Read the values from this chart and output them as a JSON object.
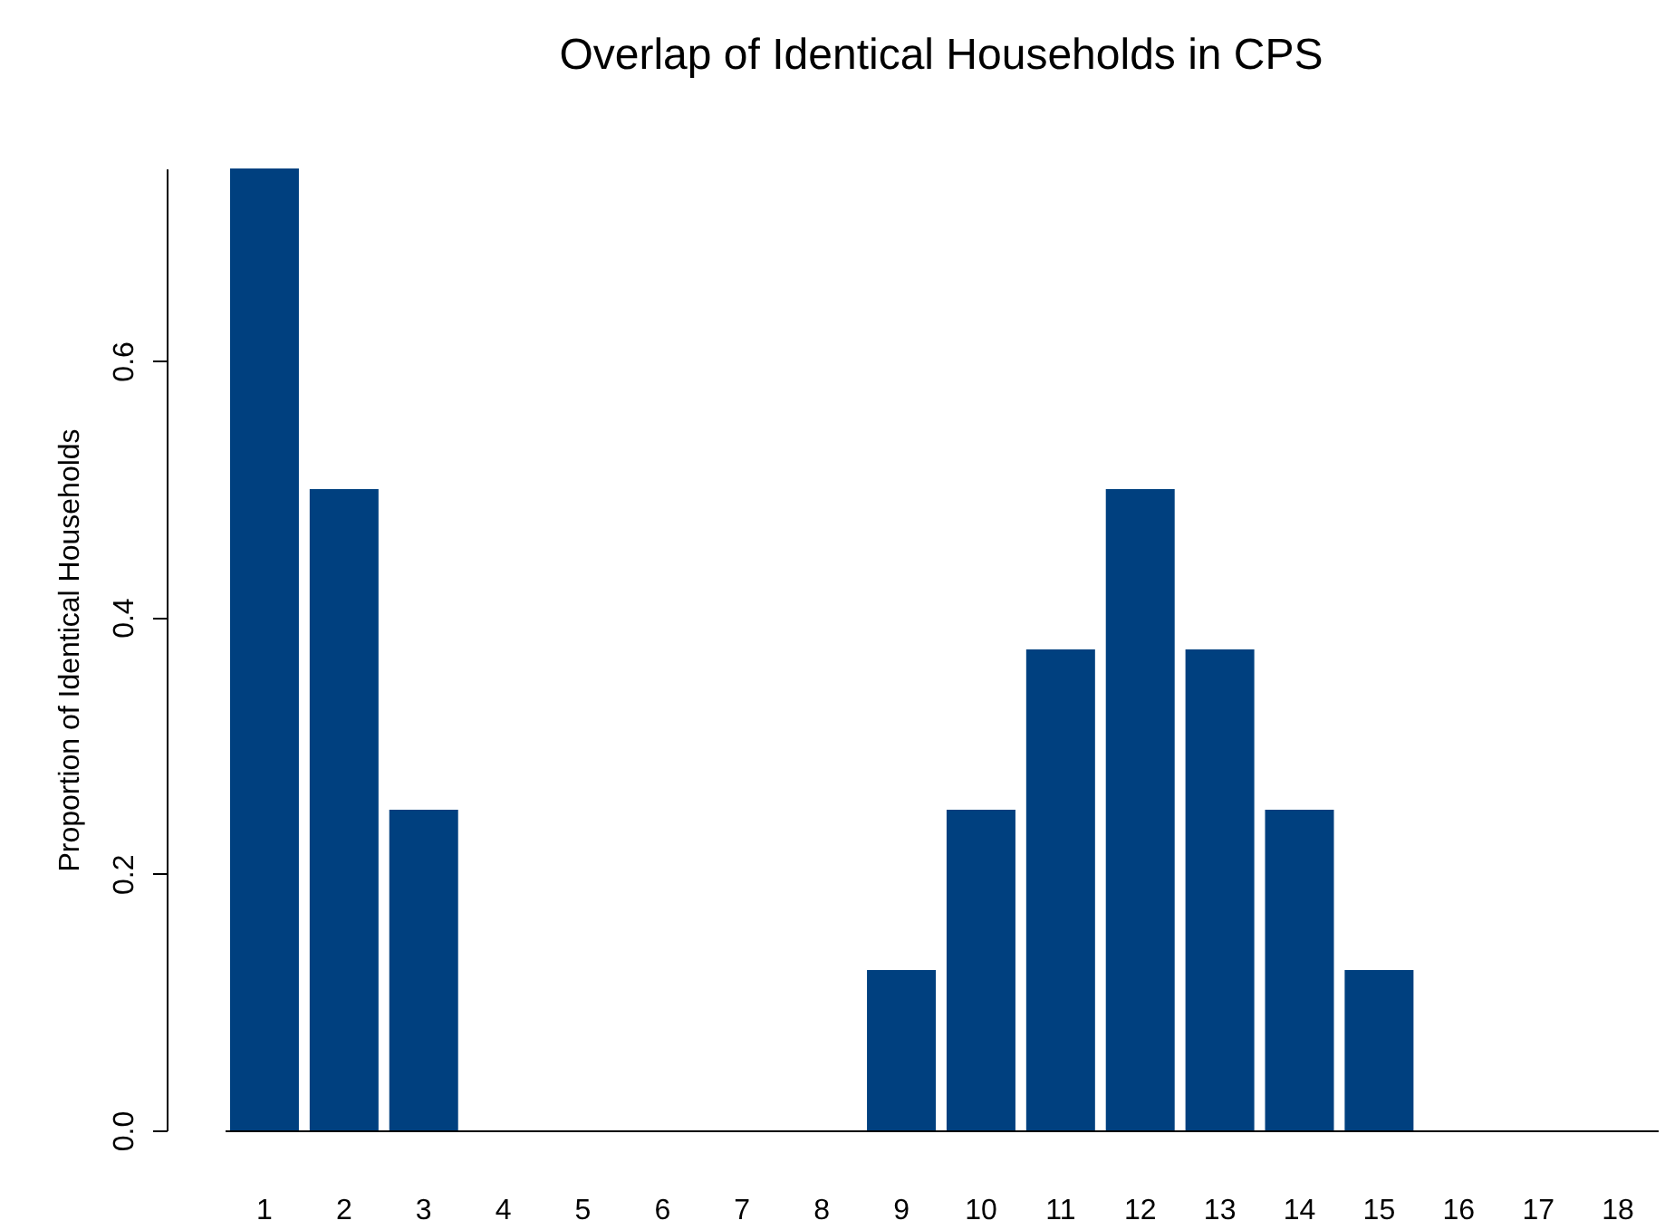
{
  "chart_data": {
    "type": "bar",
    "title": "Overlap of Identical Households in CPS",
    "ylabel": "Proportion of Identical Households",
    "categories": [
      "1",
      "2",
      "3",
      "4",
      "5",
      "6",
      "7",
      "8",
      "9",
      "10",
      "11",
      "12",
      "13",
      "14",
      "15",
      "16",
      "17",
      "18"
    ],
    "values": [
      0.75,
      0.5,
      0.25,
      0,
      0,
      0,
      0,
      0,
      0.125,
      0.25,
      0.375,
      0.5,
      0.375,
      0.25,
      0.125,
      0,
      0,
      0
    ],
    "color": "#00407f",
    "ylim": [
      0,
      0.75
    ],
    "yticks": [
      {
        "value": 0,
        "label": "0.0"
      },
      {
        "value": 0.2,
        "label": "0.2"
      },
      {
        "value": 0.4,
        "label": "0.4"
      },
      {
        "value": 0.6,
        "label": "0.6"
      }
    ],
    "grid": false
  }
}
